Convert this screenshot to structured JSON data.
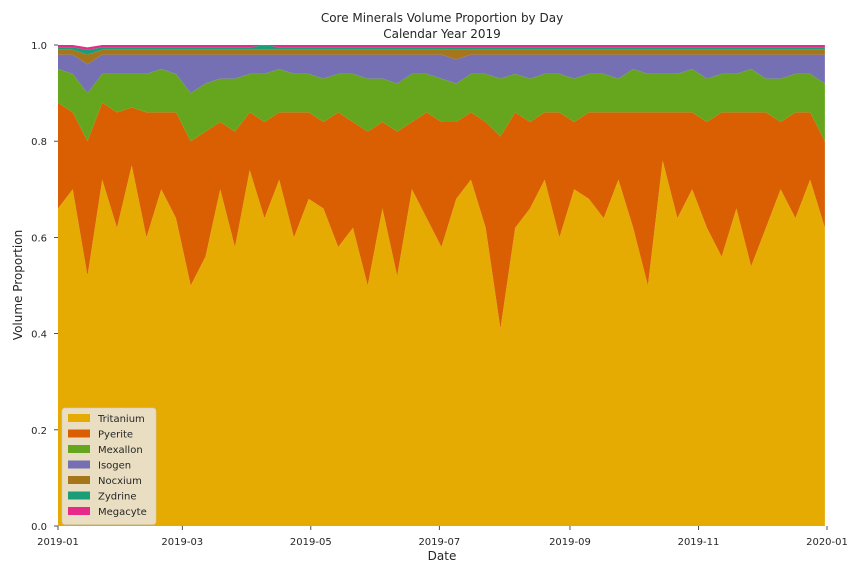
{
  "chart_data": {
    "type": "area",
    "stacked": true,
    "title": "Core Minerals Volume Proportion by Day",
    "subtitle": "Calendar Year 2019",
    "xlabel": "Date",
    "ylabel": "Volume Proportion",
    "xlim": [
      "2019-01-01",
      "2020-01-01"
    ],
    "ylim": [
      0,
      1
    ],
    "grid": false,
    "legend_position": "lower-left",
    "x_ticks": [
      "2019-01",
      "2019-03",
      "2019-05",
      "2019-07",
      "2019-09",
      "2019-11",
      "2020-01"
    ],
    "y_ticks": [
      "0.0",
      "0.2",
      "0.4",
      "0.6",
      "0.8",
      "1.0"
    ],
    "frequency": "daily",
    "sampling": "weekly samples of the daily series",
    "x": [
      "2019-01-01",
      "2019-01-08",
      "2019-01-15",
      "2019-01-22",
      "2019-01-29",
      "2019-02-05",
      "2019-02-12",
      "2019-02-19",
      "2019-02-26",
      "2019-03-05",
      "2019-03-12",
      "2019-03-19",
      "2019-03-26",
      "2019-04-02",
      "2019-04-09",
      "2019-04-16",
      "2019-04-23",
      "2019-04-30",
      "2019-05-07",
      "2019-05-14",
      "2019-05-21",
      "2019-05-28",
      "2019-06-04",
      "2019-06-11",
      "2019-06-18",
      "2019-06-25",
      "2019-07-02",
      "2019-07-09",
      "2019-07-16",
      "2019-07-23",
      "2019-07-30",
      "2019-08-06",
      "2019-08-13",
      "2019-08-20",
      "2019-08-27",
      "2019-09-03",
      "2019-09-10",
      "2019-09-17",
      "2019-09-24",
      "2019-10-01",
      "2019-10-08",
      "2019-10-15",
      "2019-10-22",
      "2019-10-29",
      "2019-11-05",
      "2019-11-12",
      "2019-11-19",
      "2019-11-26",
      "2019-12-03",
      "2019-12-10",
      "2019-12-17",
      "2019-12-24",
      "2019-12-31"
    ],
    "series": [
      {
        "name": "Tritanium",
        "color": "#e6ab02",
        "values": [
          0.66,
          0.7,
          0.52,
          0.72,
          0.62,
          0.75,
          0.6,
          0.7,
          0.64,
          0.5,
          0.56,
          0.7,
          0.58,
          0.74,
          0.64,
          0.72,
          0.6,
          0.68,
          0.66,
          0.58,
          0.62,
          0.5,
          0.66,
          0.52,
          0.7,
          0.64,
          0.58,
          0.68,
          0.72,
          0.62,
          0.41,
          0.62,
          0.66,
          0.72,
          0.6,
          0.7,
          0.68,
          0.64,
          0.72,
          0.62,
          0.5,
          0.76,
          0.64,
          0.7,
          0.62,
          0.56,
          0.66,
          0.54,
          0.62,
          0.7,
          0.64,
          0.72,
          0.62
        ]
      },
      {
        "name": "Pyerite",
        "color": "#d95f02",
        "values": [
          0.22,
          0.16,
          0.28,
          0.16,
          0.24,
          0.12,
          0.26,
          0.16,
          0.22,
          0.3,
          0.26,
          0.14,
          0.24,
          0.12,
          0.2,
          0.14,
          0.26,
          0.18,
          0.18,
          0.28,
          0.22,
          0.32,
          0.18,
          0.3,
          0.14,
          0.22,
          0.26,
          0.16,
          0.14,
          0.22,
          0.4,
          0.24,
          0.18,
          0.14,
          0.26,
          0.14,
          0.18,
          0.22,
          0.14,
          0.24,
          0.36,
          0.1,
          0.22,
          0.16,
          0.22,
          0.3,
          0.2,
          0.32,
          0.24,
          0.14,
          0.22,
          0.14,
          0.18
        ]
      },
      {
        "name": "Mexallon",
        "color": "#66a61e",
        "values": [
          0.07,
          0.08,
          0.1,
          0.06,
          0.08,
          0.07,
          0.08,
          0.09,
          0.08,
          0.1,
          0.1,
          0.09,
          0.11,
          0.08,
          0.1,
          0.09,
          0.08,
          0.08,
          0.09,
          0.08,
          0.1,
          0.11,
          0.09,
          0.1,
          0.1,
          0.08,
          0.09,
          0.08,
          0.08,
          0.1,
          0.12,
          0.08,
          0.09,
          0.08,
          0.08,
          0.09,
          0.08,
          0.08,
          0.07,
          0.09,
          0.08,
          0.08,
          0.08,
          0.09,
          0.09,
          0.08,
          0.08,
          0.09,
          0.07,
          0.09,
          0.08,
          0.08,
          0.12
        ]
      },
      {
        "name": "Isogen",
        "color": "#7570b3",
        "values": [
          0.03,
          0.04,
          0.06,
          0.04,
          0.04,
          0.04,
          0.04,
          0.03,
          0.04,
          0.08,
          0.06,
          0.05,
          0.05,
          0.04,
          0.04,
          0.03,
          0.04,
          0.04,
          0.05,
          0.04,
          0.04,
          0.05,
          0.05,
          0.06,
          0.04,
          0.04,
          0.05,
          0.05,
          0.04,
          0.04,
          0.05,
          0.04,
          0.05,
          0.04,
          0.04,
          0.05,
          0.04,
          0.04,
          0.05,
          0.03,
          0.04,
          0.04,
          0.04,
          0.03,
          0.05,
          0.04,
          0.04,
          0.03,
          0.05,
          0.05,
          0.04,
          0.04,
          0.06
        ]
      },
      {
        "name": "Nocxium",
        "color": "#a6761d",
        "values": [
          0.01,
          0.01,
          0.02,
          0.01,
          0.01,
          0.01,
          0.01,
          0.01,
          0.01,
          0.01,
          0.01,
          0.01,
          0.01,
          0.01,
          0.01,
          0.01,
          0.01,
          0.01,
          0.01,
          0.01,
          0.01,
          0.01,
          0.01,
          0.01,
          0.01,
          0.01,
          0.01,
          0.02,
          0.01,
          0.01,
          0.01,
          0.01,
          0.01,
          0.01,
          0.01,
          0.01,
          0.01,
          0.01,
          0.01,
          0.01,
          0.01,
          0.01,
          0.01,
          0.01,
          0.01,
          0.01,
          0.01,
          0.01,
          0.01,
          0.01,
          0.01,
          0.01,
          0.01
        ]
      },
      {
        "name": "Zydrine",
        "color": "#1b9e77",
        "values": [
          0.005,
          0.005,
          0.01,
          0.005,
          0.005,
          0.005,
          0.005,
          0.005,
          0.005,
          0.005,
          0.005,
          0.005,
          0.005,
          0.005,
          0.01,
          0.005,
          0.005,
          0.005,
          0.005,
          0.005,
          0.005,
          0.005,
          0.005,
          0.005,
          0.005,
          0.005,
          0.005,
          0.005,
          0.005,
          0.005,
          0.005,
          0.005,
          0.005,
          0.005,
          0.005,
          0.005,
          0.005,
          0.005,
          0.005,
          0.005,
          0.005,
          0.005,
          0.005,
          0.005,
          0.005,
          0.005,
          0.005,
          0.005,
          0.005,
          0.005,
          0.005,
          0.005,
          0.005
        ]
      },
      {
        "name": "Megacyte",
        "color": "#e7298a",
        "values": [
          0.005,
          0.005,
          0.005,
          0.005,
          0.005,
          0.005,
          0.005,
          0.005,
          0.005,
          0.005,
          0.005,
          0.005,
          0.005,
          0.005,
          0.005,
          0.005,
          0.005,
          0.005,
          0.005,
          0.005,
          0.005,
          0.005,
          0.005,
          0.005,
          0.005,
          0.005,
          0.005,
          0.005,
          0.005,
          0.005,
          0.005,
          0.005,
          0.005,
          0.005,
          0.005,
          0.005,
          0.005,
          0.005,
          0.005,
          0.005,
          0.005,
          0.005,
          0.005,
          0.005,
          0.005,
          0.005,
          0.005,
          0.005,
          0.005,
          0.005,
          0.005,
          0.005,
          0.005
        ]
      }
    ]
  }
}
